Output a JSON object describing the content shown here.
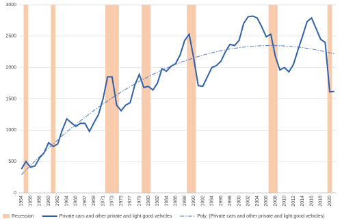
{
  "chart_data": {
    "type": "combo",
    "categories": [
      "1954",
      null,
      "1956",
      null,
      "1958",
      null,
      "1960",
      null,
      "1962",
      null,
      "1964",
      null,
      "1966",
      null,
      "1967",
      null,
      "1969",
      null,
      "1971",
      null,
      "1973",
      null,
      "1975",
      null,
      "1977",
      null,
      "1979",
      null,
      "1980",
      null,
      "1982",
      null,
      "1984",
      null,
      "1986",
      null,
      "1988",
      null,
      "1990",
      null,
      "1992",
      null,
      "1994",
      null,
      "1996",
      null,
      "1998",
      null,
      "2000",
      null,
      "2002",
      null,
      "2004",
      null,
      "2006",
      null,
      "2008",
      null,
      "2010",
      null,
      "2012",
      null,
      "2014",
      null,
      "2016",
      null,
      "2018",
      null,
      "2020",
      null
    ],
    "ylim": [
      0,
      3000
    ],
    "yticks": [
      0,
      500,
      1000,
      1500,
      2000,
      2500,
      3000
    ],
    "grid": true,
    "legend": "bottom",
    "series": [
      {
        "name": "Recession",
        "type": "bar",
        "color": "#f8cbad",
        "values": [
          null,
          3000,
          null,
          null,
          null,
          null,
          null,
          3000,
          null,
          null,
          null,
          null,
          null,
          null,
          null,
          null,
          null,
          null,
          null,
          3000,
          3000,
          3000,
          null,
          null,
          null,
          null,
          null,
          3000,
          3000,
          null,
          null,
          null,
          null,
          null,
          null,
          null,
          null,
          3000,
          3000,
          null,
          null,
          null,
          null,
          null,
          null,
          null,
          null,
          null,
          null,
          null,
          null,
          null,
          null,
          null,
          null,
          3000,
          3000,
          null,
          null,
          null,
          null,
          null,
          null,
          null,
          null,
          null,
          null,
          null,
          3000,
          null
        ]
      },
      {
        "name": "Private cars and other private and light good vehicles",
        "type": "line",
        "color": "#2e5fa8",
        "dash": "solid",
        "values": [
          380,
          500,
          410,
          430,
          560,
          640,
          800,
          740,
          780,
          1000,
          1180,
          1120,
          1060,
          1110,
          1110,
          980,
          1120,
          1250,
          1500,
          1850,
          1850,
          1400,
          1310,
          1400,
          1440,
          1720,
          1890,
          1680,
          1700,
          1640,
          1750,
          1980,
          1940,
          2020,
          2060,
          2200,
          2430,
          2530,
          2150,
          1710,
          1700,
          1850,
          2000,
          2030,
          2100,
          2250,
          2370,
          2350,
          2430,
          2700,
          2810,
          2820,
          2790,
          2650,
          2490,
          2530,
          2180,
          1960,
          2000,
          1930,
          2050,
          2280,
          2500,
          2730,
          2790,
          2620,
          2450,
          2400,
          1610,
          1620
        ]
      },
      {
        "name": "Poly. (Private cars and other private and light good vehicles)",
        "type": "line",
        "color": "#4a78c8",
        "dash": "dashdot",
        "values": [
          290,
          364,
          437,
          509,
          579,
          647,
          715,
          781,
          846,
          909,
          971,
          1032,
          1091,
          1149,
          1205,
          1260,
          1314,
          1367,
          1418,
          1467,
          1516,
          1563,
          1608,
          1653,
          1696,
          1737,
          1777,
          1816,
          1854,
          1890,
          1924,
          1958,
          1990,
          2020,
          2050,
          2078,
          2104,
          2129,
          2153,
          2176,
          2197,
          2217,
          2235,
          2252,
          2268,
          2282,
          2295,
          2306,
          2317,
          2325,
          2333,
          2339,
          2344,
          2347,
          2349,
          2350,
          2349,
          2347,
          2344,
          2339,
          2333,
          2325,
          2317,
          2306,
          2295,
          2282,
          2268,
          2252,
          2235,
          2217
        ]
      }
    ]
  }
}
